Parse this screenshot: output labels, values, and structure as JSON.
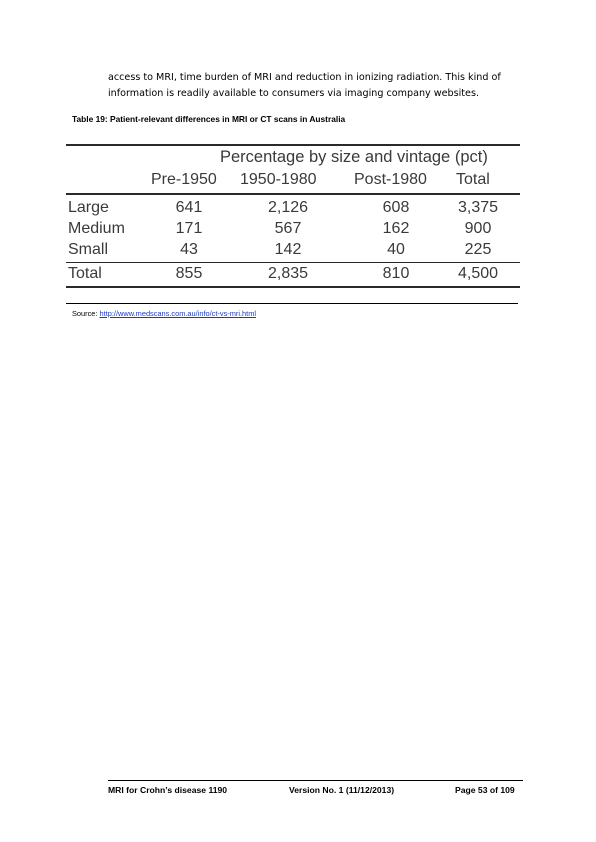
{
  "intro": {
    "line1": "access to MRI, time burden of MRI and reduction in ionizing radiation. This kind of",
    "line2": "information is readily available to consumers via imaging company websites."
  },
  "table": {
    "caption": "Table 19: Patient-relevant differences in MRI or CT scans in Australia",
    "super_header": "Percentage by size and vintage (pct)",
    "columns": [
      "Pre-1950",
      "1950-1980",
      "Post-1980",
      "Total"
    ],
    "rows": [
      {
        "label": "Large",
        "values": [
          "641",
          "2,126",
          "608",
          "3,375"
        ]
      },
      {
        "label": "Medium",
        "values": [
          "171",
          "567",
          "162",
          "900"
        ]
      },
      {
        "label": "Small",
        "values": [
          "43",
          "142",
          "40",
          "225"
        ]
      },
      {
        "label": "Total",
        "values": [
          "855",
          "2,835",
          "810",
          "4,500"
        ]
      }
    ]
  },
  "source": {
    "prefix": "Source: ",
    "link": "http://www.medscans.com.au/info/ct-vs-mri.html"
  },
  "footer": {
    "doc": "MRI for Crohn’s disease 1190",
    "version": "Version No. 1 (11/12/2013)",
    "page": "Page 53 of 109"
  }
}
